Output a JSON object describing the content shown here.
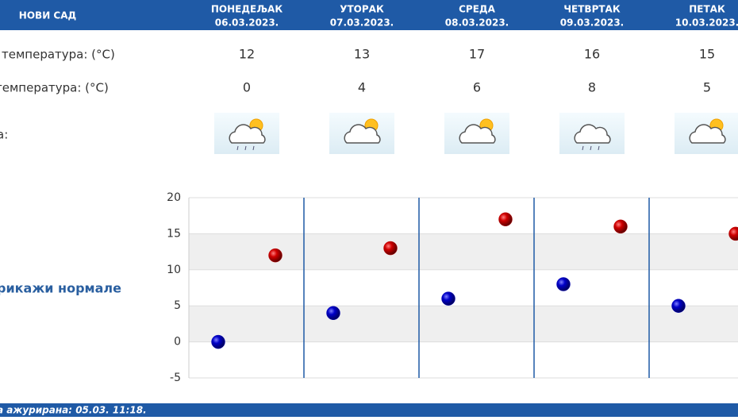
{
  "header": {
    "city": "НОВИ САД",
    "days": [
      {
        "name": "ПОНЕДЕЉАК",
        "date": "06.03.2023."
      },
      {
        "name": "УТОРАК",
        "date": "07.03.2023."
      },
      {
        "name": "СРЕДА",
        "date": "08.03.2023."
      },
      {
        "name": "ЧЕТВРТАК",
        "date": "09.03.2023."
      },
      {
        "name": "ПЕТАК",
        "date": "10.03.2023."
      }
    ]
  },
  "rows": [
    {
      "label": "температура: (°C)",
      "values": [
        12,
        13,
        17,
        16,
        15
      ]
    },
    {
      "label": "температура: (°C)",
      "values": [
        0,
        4,
        6,
        8,
        5
      ]
    }
  ],
  "icons_label": "а:",
  "normals_link": "рикажи нормале",
  "footer": "а ажурирана:  05.03.  11:18.",
  "chart_data": {
    "type": "scatter",
    "ylim": [
      -5,
      20
    ],
    "yticks": [
      -5,
      0,
      5,
      10,
      15,
      20
    ],
    "grid": true,
    "series": [
      {
        "color": "#1010c0",
        "values": [
          0,
          4,
          6,
          8,
          5
        ]
      },
      {
        "color": "#c01010",
        "values": [
          12,
          13,
          17,
          16,
          15
        ]
      }
    ]
  }
}
